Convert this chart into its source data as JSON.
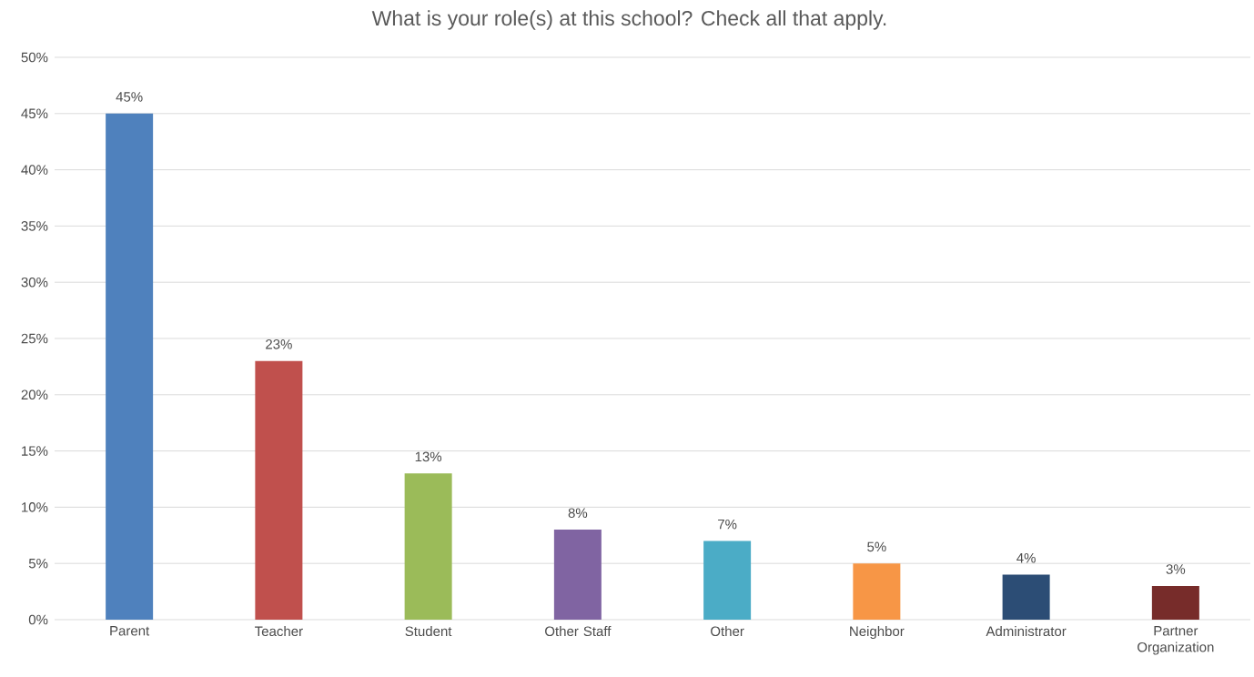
{
  "chart_data": {
    "type": "bar",
    "title": "What is your role(s) at this school? Check all that apply.",
    "categories": [
      "Parent",
      "Teacher",
      "Student",
      "Other Staff",
      "Other",
      "Neighbor",
      "Administrator",
      "Partner Organization"
    ],
    "values": [
      45,
      23,
      13,
      8,
      7,
      5,
      4,
      3
    ],
    "colors": [
      "#4f81bd",
      "#c0504d",
      "#9bbb59",
      "#8064a2",
      "#4bacc6",
      "#f79646",
      "#2c4d75",
      "#772c2a"
    ],
    "value_labels": [
      "45%",
      "23%",
      "13%",
      "8%",
      "7%",
      "5%",
      "4%",
      "3%"
    ],
    "ylim": [
      0,
      50
    ],
    "yticks": [
      {
        "value": 0,
        "label": "0%"
      },
      {
        "value": 5,
        "label": "5%"
      },
      {
        "value": 10,
        "label": "10%"
      },
      {
        "value": 15,
        "label": "15%"
      },
      {
        "value": 20,
        "label": "20%"
      },
      {
        "value": 25,
        "label": "25%"
      },
      {
        "value": 30,
        "label": "30%"
      },
      {
        "value": 35,
        "label": "35%"
      },
      {
        "value": 40,
        "label": "40%"
      },
      {
        "value": 45,
        "label": "45%"
      },
      {
        "value": 50,
        "label": "50%"
      }
    ],
    "grid": "y"
  }
}
